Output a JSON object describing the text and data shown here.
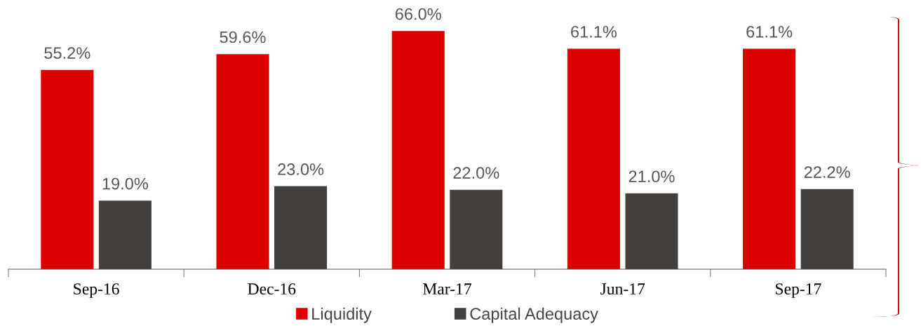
{
  "chart_data": {
    "type": "bar",
    "categories": [
      "Sep-16",
      "Dec-16",
      "Mar-17",
      "Jun-17",
      "Sep-17"
    ],
    "series": [
      {
        "name": "Liquidity",
        "color": "#dc0000",
        "values": [
          55.2,
          59.6,
          66.0,
          61.1,
          61.1
        ],
        "value_labels": [
          "55.2%",
          "59.6%",
          "66.0%",
          "61.1%",
          "61.1%"
        ]
      },
      {
        "name": "Capital Adequacy",
        "color": "#443f3b",
        "values": [
          19.0,
          23.0,
          22.0,
          21.0,
          22.2
        ],
        "value_labels": [
          "19.0%",
          "23.0%",
          "22.0%",
          "21.0%",
          "22.2%"
        ]
      }
    ],
    "tick_labels": "x",
    "legend": "bottom",
    "grid": false
  }
}
